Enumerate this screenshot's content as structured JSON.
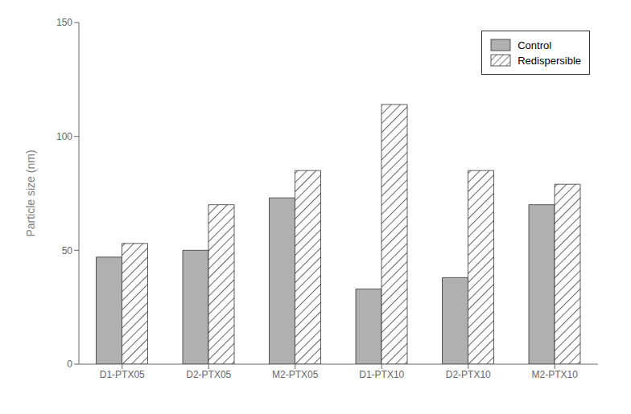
{
  "chart_data": {
    "type": "bar",
    "categories": [
      "D1-PTX05",
      "D2-PTX05",
      "M2-PTX05",
      "D1-PTX10",
      "D2-PTX10",
      "M2-PTX10"
    ],
    "series": [
      {
        "name": "Control",
        "color": "#b0b0b0",
        "values": [
          47,
          50,
          73,
          33,
          38,
          70
        ]
      },
      {
        "name": "Redispersible",
        "color": "#ffffff",
        "values": [
          53,
          70,
          85,
          114,
          85,
          79
        ]
      }
    ],
    "ylabel": "Particle size (nm)",
    "ylim": [
      0,
      150
    ],
    "yticks": [
      0,
      50,
      100,
      150
    ],
    "grid": false,
    "legend": "upper right"
  }
}
